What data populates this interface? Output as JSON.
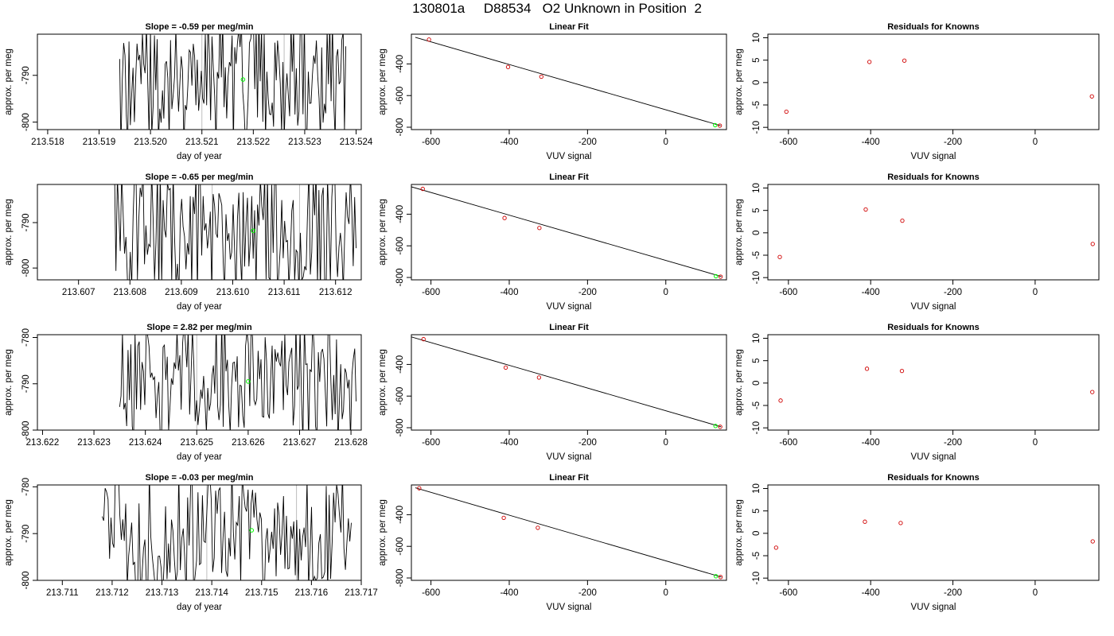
{
  "title": "130801a     D88534   O2 Unknown in Position  2",
  "colors": {
    "line": "#000000",
    "highlight": "#00ff00",
    "residual": "#d00000",
    "window_line": "#bebebe"
  },
  "chart_data": [
    {
      "row": 1,
      "timeseries": {
        "type": "line",
        "title": "Slope =  -0.59  per meg/min",
        "xlabel": "day of year",
        "ylabel": "approx. per meg",
        "xlim": [
          213.5178,
          213.5241
        ],
        "ylim": [
          -801.6,
          -781.2
        ],
        "xticks": [
          "213.518",
          "213.519",
          "213.520",
          "213.521",
          "213.522",
          "213.523",
          "213.524"
        ],
        "yticks": [
          "-790",
          "-800"
        ],
        "start": 213.5194,
        "end": 213.5238,
        "window_lines": [
          213.521,
          213.5226
        ],
        "point": {
          "x": 213.5218,
          "y": -790.9
        }
      },
      "fit": {
        "type": "scatter",
        "title": "Linear Fit",
        "xlabel": "VUV signal",
        "ylabel": "approx. per meg",
        "xlim": [
          -650,
          155
        ],
        "ylim": [
          -815,
          -212
        ],
        "xticks": [
          "-600",
          "-400",
          "-200",
          "0"
        ],
        "yticks": [
          "-400",
          "-600",
          "-800"
        ],
        "knowns": [
          {
            "x": -605,
            "y": -246
          },
          {
            "x": -403,
            "y": -419
          },
          {
            "x": -318,
            "y": -481
          },
          {
            "x": 138,
            "y": -790
          }
        ],
        "unknown": {
          "x": 126,
          "y": -787
        },
        "line": [
          [
            -640,
            -232
          ],
          [
            140,
            -790
          ]
        ]
      },
      "residuals": {
        "type": "scatter",
        "title": "Residuals for Knowns",
        "xlabel": "VUV signal",
        "ylabel": "approx. per meg",
        "xlim": [
          -650,
          155
        ],
        "ylim": [
          -10.5,
          10.8
        ],
        "xticks": [
          "-600",
          "-400",
          "-200",
          "0"
        ],
        "yticks": [
          "-10",
          "-5",
          "0",
          "5",
          "10"
        ],
        "points": [
          {
            "x": -605,
            "y": -6.5
          },
          {
            "x": -403,
            "y": 4.6
          },
          {
            "x": -318,
            "y": 4.9
          },
          {
            "x": 138,
            "y": -3.1
          }
        ]
      }
    },
    {
      "row": 2,
      "timeseries": {
        "type": "line",
        "title": "Slope =  -0.65  per meg/min",
        "xlabel": "day of year",
        "ylabel": "approx. per meg",
        "xlim": [
          213.6062,
          213.6125
        ],
        "ylim": [
          -802.6,
          -781.6
        ],
        "xticks": [
          "213.607",
          "213.608",
          "213.609",
          "213.610",
          "213.611",
          "213.612"
        ],
        "yticks": [
          "-790",
          "-800"
        ],
        "start": 213.6077,
        "end": 213.6124,
        "window_lines": [
          213.6096,
          213.6113
        ],
        "point": {
          "x": 213.6104,
          "y": -791.8
        }
      },
      "fit": {
        "type": "scatter",
        "title": "Linear Fit",
        "xlabel": "VUV signal",
        "ylabel": "approx. per meg",
        "xlim": [
          -650,
          155
        ],
        "ylim": [
          -815,
          -212
        ],
        "xticks": [
          "-600",
          "-400",
          "-200",
          "0"
        ],
        "yticks": [
          "-400",
          "-600",
          "-800"
        ],
        "knowns": [
          {
            "x": -621,
            "y": -240
          },
          {
            "x": -412,
            "y": -424
          },
          {
            "x": -323,
            "y": -487
          },
          {
            "x": 140,
            "y": -795
          }
        ],
        "unknown": {
          "x": 128,
          "y": -792
        },
        "line": [
          [
            -650,
            -227
          ],
          [
            142,
            -794
          ]
        ]
      },
      "residuals": {
        "type": "scatter",
        "title": "Residuals for Knowns",
        "xlabel": "VUV signal",
        "ylabel": "approx. per meg",
        "xlim": [
          -650,
          155
        ],
        "ylim": [
          -10.5,
          10.8
        ],
        "xticks": [
          "-600",
          "-400",
          "-200",
          "0"
        ],
        "yticks": [
          "-10",
          "-5",
          "0",
          "5",
          "10"
        ],
        "points": [
          {
            "x": -621,
            "y": -5.4
          },
          {
            "x": -412,
            "y": 5.2
          },
          {
            "x": -323,
            "y": 2.7
          },
          {
            "x": 140,
            "y": -2.5
          }
        ]
      }
    },
    {
      "row": 3,
      "timeseries": {
        "type": "line",
        "title": "Slope =  2.82  per meg/min",
        "xlabel": "day of year",
        "ylabel": "approx. per meg",
        "xlim": [
          213.6219,
          213.6282
        ],
        "ylim": [
          -800,
          -779.4
        ],
        "xticks": [
          "213.622",
          "213.623",
          "213.624",
          "213.625",
          "213.626",
          "213.627",
          "213.628"
        ],
        "yticks": [
          "-780",
          "-790",
          "-800"
        ],
        "start": 213.6235,
        "end": 213.6281,
        "window_lines": [
          213.625,
          213.627
        ],
        "point": {
          "x": 213.626,
          "y": -789.5
        }
      },
      "fit": {
        "type": "scatter",
        "title": "Linear Fit",
        "xlabel": "VUV signal",
        "ylabel": "approx. per meg",
        "xlim": [
          -650,
          155
        ],
        "ylim": [
          -815,
          -212
        ],
        "xticks": [
          "-600",
          "-400",
          "-200",
          "0"
        ],
        "yticks": [
          "-400",
          "-600",
          "-800"
        ],
        "knowns": [
          {
            "x": -619,
            "y": -240
          },
          {
            "x": -409,
            "y": -420
          },
          {
            "x": -324,
            "y": -483
          },
          {
            "x": 139,
            "y": -794
          }
        ],
        "unknown": {
          "x": 127,
          "y": -789
        },
        "line": [
          [
            -650,
            -226
          ],
          [
            141,
            -794
          ]
        ]
      },
      "residuals": {
        "type": "scatter",
        "title": "Residuals for Knowns",
        "xlabel": "VUV signal",
        "ylabel": "approx. per meg",
        "xlim": [
          -650,
          155
        ],
        "ylim": [
          -10.5,
          10.8
        ],
        "xticks": [
          "-600",
          "-400",
          "-200",
          "0"
        ],
        "yticks": [
          "-10",
          "-5",
          "0",
          "5",
          "10"
        ],
        "points": [
          {
            "x": -619,
            "y": -3.9
          },
          {
            "x": -409,
            "y": 3.2
          },
          {
            "x": -324,
            "y": 2.7
          },
          {
            "x": 139,
            "y": -2.0
          }
        ]
      }
    },
    {
      "row": 4,
      "timeseries": {
        "type": "line",
        "title": "Slope =  -0.03  per meg/min",
        "xlabel": "day of year",
        "ylabel": "approx. per meg",
        "xlim": [
          213.7105,
          213.717
        ],
        "ylim": [
          -800,
          -779.6
        ],
        "xticks": [
          "213.711",
          "213.712",
          "213.713",
          "213.714",
          "213.715",
          "213.716",
          "213.717"
        ],
        "yticks": [
          "-780",
          "-790",
          "-800"
        ],
        "start": 213.7118,
        "end": 213.7168,
        "window_lines": [
          213.7139,
          213.7157
        ],
        "point": {
          "x": 213.7148,
          "y": -789.3
        }
      },
      "fit": {
        "type": "scatter",
        "title": "Linear Fit",
        "xlabel": "VUV signal",
        "ylabel": "approx. per meg",
        "xlim": [
          -650,
          155
        ],
        "ylim": [
          -815,
          -212
        ],
        "xticks": [
          "-600",
          "-400",
          "-200",
          "0"
        ],
        "yticks": [
          "-400",
          "-600",
          "-800"
        ],
        "knowns": [
          {
            "x": -630,
            "y": -233
          },
          {
            "x": -414,
            "y": -420
          },
          {
            "x": -327,
            "y": -483
          },
          {
            "x": 140,
            "y": -794
          }
        ],
        "unknown": {
          "x": 128,
          "y": -789
        },
        "line": [
          [
            -640,
            -230
          ],
          [
            142,
            -794
          ]
        ]
      },
      "residuals": {
        "type": "scatter",
        "title": "Residuals for Knowns",
        "xlabel": "VUV signal",
        "ylabel": "approx. per meg",
        "xlim": [
          -650,
          155
        ],
        "ylim": [
          -10.5,
          10.8
        ],
        "xticks": [
          "-600",
          "-400",
          "-200",
          "0"
        ],
        "yticks": [
          "-10",
          "-5",
          "0",
          "5",
          "10"
        ],
        "points": [
          {
            "x": -630,
            "y": -3.2
          },
          {
            "x": -414,
            "y": 2.6
          },
          {
            "x": -327,
            "y": 2.3
          },
          {
            "x": 140,
            "y": -1.8
          }
        ]
      }
    }
  ]
}
